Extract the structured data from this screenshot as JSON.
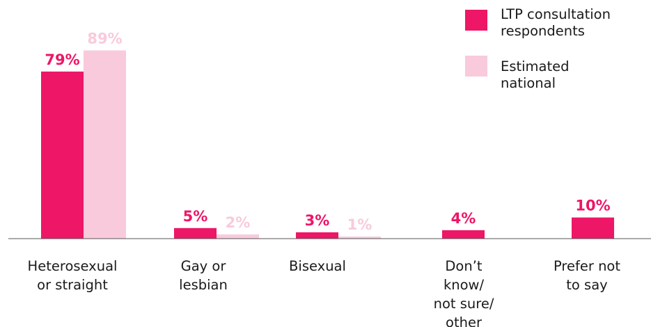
{
  "chart_data": {
    "type": "bar",
    "categories": [
      [
        "Heterosexual",
        "or straight"
      ],
      [
        "Gay or",
        "lesbian"
      ],
      [
        "Bisexual"
      ],
      [
        "Don’t",
        "know/",
        "not sure/",
        "other"
      ],
      [
        "Prefer not",
        "to say"
      ]
    ],
    "series": [
      {
        "name": [
          "LTP consultation",
          "respondents"
        ],
        "color": "#ee1666",
        "values": [
          79,
          5,
          3,
          4,
          10
        ],
        "labels": [
          "79%",
          "5%",
          "3%",
          "4%",
          "10%"
        ]
      },
      {
        "name": [
          "Estimated",
          "national"
        ],
        "color": "#f9cadc",
        "values": [
          89,
          2,
          1,
          null,
          null
        ],
        "labels": [
          "89%",
          "2%",
          "1%",
          null,
          null
        ]
      }
    ],
    "ylim": [
      0,
      100
    ],
    "grid": false,
    "legend": "top-right"
  }
}
